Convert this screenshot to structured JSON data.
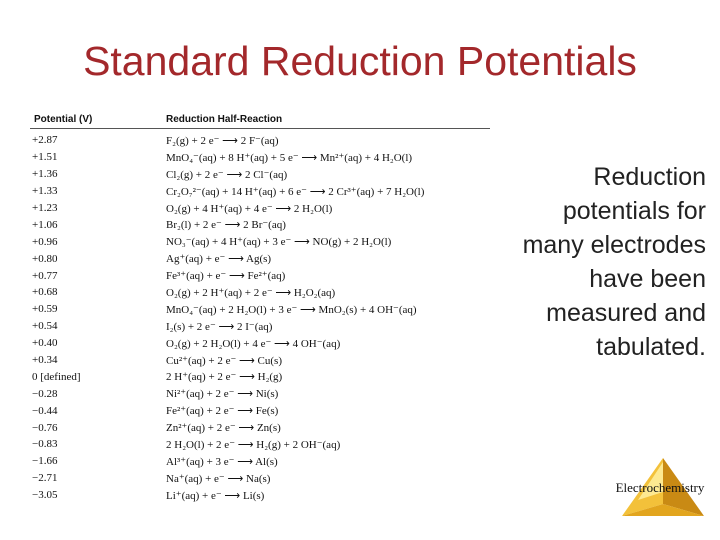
{
  "title": "Standard Reduction Potentials",
  "table": {
    "headers": {
      "potential": "Potential (V)",
      "reaction": "Reduction Half-Reaction"
    },
    "rows": [
      {
        "potential": "+2.87",
        "reaction": "F₂(g) + 2 e⁻ ⟶ 2 F⁻(aq)"
      },
      {
        "potential": "+1.51",
        "reaction": "MnO₄⁻(aq) + 8 H⁺(aq) + 5 e⁻ ⟶ Mn²⁺(aq) + 4 H₂O(l)"
      },
      {
        "potential": "+1.36",
        "reaction": "Cl₂(g) + 2 e⁻ ⟶ 2 Cl⁻(aq)"
      },
      {
        "potential": "+1.33",
        "reaction": "Cr₂O₇²⁻(aq) + 14 H⁺(aq) + 6 e⁻ ⟶ 2 Cr³⁺(aq) + 7 H₂O(l)"
      },
      {
        "potential": "+1.23",
        "reaction": "O₂(g) + 4 H⁺(aq) + 4 e⁻ ⟶ 2 H₂O(l)"
      },
      {
        "potential": "+1.06",
        "reaction": "Br₂(l) + 2 e⁻ ⟶ 2 Br⁻(aq)"
      },
      {
        "potential": "+0.96",
        "reaction": "NO₃⁻(aq) + 4 H⁺(aq) + 3 e⁻ ⟶ NO(g) + 2 H₂O(l)"
      },
      {
        "potential": "+0.80",
        "reaction": "Ag⁺(aq) + e⁻ ⟶ Ag(s)"
      },
      {
        "potential": "+0.77",
        "reaction": "Fe³⁺(aq) + e⁻ ⟶ Fe²⁺(aq)"
      },
      {
        "potential": "+0.68",
        "reaction": "O₂(g) + 2 H⁺(aq) + 2 e⁻ ⟶ H₂O₂(aq)"
      },
      {
        "potential": "+0.59",
        "reaction": "MnO₄⁻(aq) + 2 H₂O(l) + 3 e⁻ ⟶ MnO₂(s) + 4 OH⁻(aq)"
      },
      {
        "potential": "+0.54",
        "reaction": "I₂(s) + 2 e⁻ ⟶ 2 I⁻(aq)"
      },
      {
        "potential": "+0.40",
        "reaction": "O₂(g) + 2 H₂O(l) + 4 e⁻ ⟶ 4 OH⁻(aq)"
      },
      {
        "potential": "+0.34",
        "reaction": "Cu²⁺(aq) + 2 e⁻ ⟶ Cu(s)"
      },
      {
        "potential": "0 [defined]",
        "reaction": "2 H⁺(aq) + 2 e⁻ ⟶ H₂(g)"
      },
      {
        "potential": "−0.28",
        "reaction": "Ni²⁺(aq) + 2 e⁻ ⟶ Ni(s)"
      },
      {
        "potential": "−0.44",
        "reaction": "Fe²⁺(aq) + 2 e⁻ ⟶ Fe(s)"
      },
      {
        "potential": "−0.76",
        "reaction": "Zn²⁺(aq) + 2 e⁻ ⟶ Zn(s)"
      },
      {
        "potential": "−0.83",
        "reaction": "2 H₂O(l) + 2 e⁻ ⟶ H₂(g) + 2 OH⁻(aq)"
      },
      {
        "potential": "−1.66",
        "reaction": "Al³⁺(aq) + 3 e⁻ ⟶ Al(s)"
      },
      {
        "potential": "−2.71",
        "reaction": "Na⁺(aq) + e⁻ ⟶ Na(s)"
      },
      {
        "potential": "−3.05",
        "reaction": "Li⁺(aq) + e⁻ ⟶ Li(s)"
      }
    ]
  },
  "side_text": "Reduction potentials for many electrodes have been measured and tabulated.",
  "footer": {
    "label": "Electrochemistry",
    "icon": "pyramid-icon"
  },
  "colors": {
    "title": "#a3282b",
    "pyramid_light": "#fff2a8",
    "pyramid_mid": "#f3c13a",
    "pyramid_dark": "#c98a14"
  }
}
